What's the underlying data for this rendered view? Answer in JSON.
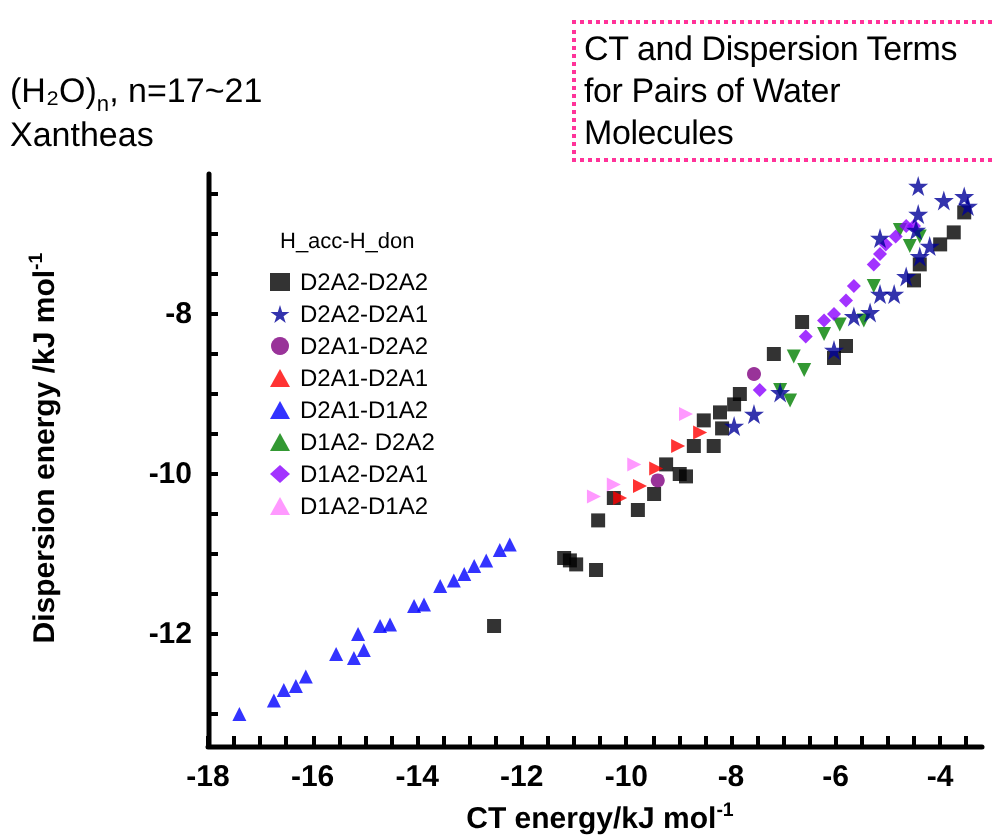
{
  "chart_data": {
    "type": "scatter",
    "title": "CT and Dispersion Terms for Pairs of Water Molecules",
    "subtitle": "(H₂O)$_{n}$, n=17~21",
    "annotations": [
      "Xantheas"
    ],
    "xlabel": "CT energy/kJ mol$^{-1}$",
    "ylabel": "Dispersion energy /kJ mol$^{-1}$",
    "legend_title": "H_acc-H_don",
    "legend": "top left",
    "grid": false,
    "xlim": [
      -18,
      -3.2
    ],
    "ylim": [
      -13.4,
      -6.25
    ],
    "xticks": [
      -18,
      {
        "value": -17.5,
        "label": null
      },
      -16,
      {
        "value": -16.5,
        "label": null
      },
      {
        "value": -17,
        "label": null
      },
      {
        "value": -15.5,
        "label": null
      },
      -14,
      {
        "value": -15,
        "label": null
      },
      {
        "value": -14.5,
        "label": null
      },
      {
        "value": -13.5,
        "label": null
      },
      {
        "value": -13,
        "label": null
      },
      {
        "value": -12.5,
        "label": null
      },
      -12,
      {
        "value": -11.5,
        "label": null
      },
      {
        "value": -11,
        "label": null
      },
      {
        "value": -10.5,
        "label": null
      },
      -10,
      {
        "value": -9.5,
        "label": null
      },
      {
        "value": -9,
        "label": null
      },
      {
        "value": -8.5,
        "label": null
      },
      -8,
      {
        "value": -7.5,
        "label": null
      },
      {
        "value": -7,
        "label": null
      },
      {
        "value": -6.5,
        "label": null
      },
      -6,
      {
        "value": -5.5,
        "label": null
      },
      {
        "value": -5,
        "label": null
      },
      {
        "value": -4.5,
        "label": null
      },
      -4,
      {
        "value": -3.5,
        "label": null
      }
    ],
    "yticks": [
      {
        "value": -13,
        "label": null
      },
      {
        "value": -12.5,
        "label": null
      },
      -12,
      {
        "value": -11.5,
        "label": null
      },
      {
        "value": -11,
        "label": null
      },
      {
        "value": -10.5,
        "label": null
      },
      -10,
      {
        "value": -9.5,
        "label": null
      },
      {
        "value": -9,
        "label": null
      },
      {
        "value": -8.5,
        "label": null
      },
      -8,
      {
        "value": -7.5,
        "label": null
      },
      {
        "value": -7,
        "label": null
      },
      {
        "value": -6.5,
        "label": null
      }
    ],
    "series": [
      {
        "name": "D2A2-D2A2",
        "color": "#000000",
        "marker": "square",
        "x": [
          -12.53,
          -11.19,
          -11.08,
          -10.96,
          -10.58,
          -10.54,
          -10.24,
          -9.78,
          -9.47,
          -9.24,
          -8.98,
          -8.86,
          -8.71,
          -8.33,
          -8.17,
          -8.52,
          -8.21,
          -7.94,
          -7.83,
          -7.18,
          -6.64,
          -6.03,
          -5.8,
          -4.5,
          -4.39,
          -4.0,
          -3.74,
          -3.54
        ],
        "values": [
          -11.9,
          -11.05,
          -11.08,
          -11.13,
          -11.2,
          -10.58,
          -10.3,
          -10.45,
          -10.25,
          -9.88,
          -10.0,
          -10.03,
          -9.65,
          -9.65,
          -9.43,
          -9.33,
          -9.23,
          -9.13,
          -9.0,
          -8.5,
          -8.1,
          -8.55,
          -8.4,
          -7.58,
          -7.38,
          -7.13,
          -6.98,
          -6.73
        ]
      },
      {
        "name": "D2A2-D2A1",
        "color": "#000099",
        "marker": "star",
        "x": [
          -7.94,
          -7.56,
          -7.06,
          -6.03,
          -5.65,
          -5.34,
          -5.15,
          -4.88,
          -4.65,
          -4.39,
          -4.2,
          -5.15,
          -4.46,
          -4.42,
          -4.42,
          -3.93,
          -3.54,
          -3.47
        ],
        "values": [
          -9.4,
          -9.25,
          -8.98,
          -8.45,
          -8.03,
          -7.98,
          -7.75,
          -7.75,
          -7.53,
          -7.28,
          -7.15,
          -7.05,
          -6.95,
          -6.75,
          -6.4,
          -6.58,
          -6.53,
          -6.65
        ]
      },
      {
        "name": "D2A1-D2A2",
        "color": "#800080",
        "marker": "circle",
        "x": [
          -9.4,
          -7.56
        ],
        "values": [
          -10.08,
          -8.75
        ]
      },
      {
        "name": "D2A1-D2A1",
        "color": "#ff0000",
        "marker": "triangle-right",
        "x": [
          -10.12,
          -9.74,
          -9.43,
          -9.01,
          -8.59
        ],
        "values": [
          -10.3,
          -10.15,
          -9.93,
          -9.65,
          -9.48
        ]
      },
      {
        "name": "D2A1-D1A2",
        "color": "#0000ff",
        "marker": "triangle",
        "x": [
          -17.4,
          -16.74,
          -16.55,
          -16.32,
          -16.13,
          -15.55,
          -15.21,
          -15.02,
          -15.13,
          -14.71,
          -14.52,
          -14.06,
          -13.87,
          -13.56,
          -13.3,
          -13.1,
          -12.91,
          -12.68,
          -12.42,
          -12.23
        ],
        "values": [
          -13.0,
          -12.83,
          -12.7,
          -12.65,
          -12.53,
          -12.25,
          -12.3,
          -12.2,
          -12.0,
          -11.9,
          -11.88,
          -11.65,
          -11.63,
          -11.4,
          -11.33,
          -11.25,
          -11.15,
          -11.08,
          -10.95,
          -10.88
        ]
      },
      {
        "name": "D1A2- D2A2",
        "color": "#008000",
        "marker": "triangle-down",
        "x": [
          -6.8,
          -6.6,
          -6.87,
          -7.06,
          -6.22,
          -5.92,
          -5.46,
          -5.27,
          -4.77,
          -4.58,
          -4.39
        ],
        "values": [
          -8.53,
          -8.7,
          -9.08,
          -8.95,
          -8.25,
          -8.13,
          -8.08,
          -7.65,
          -6.95,
          -7.15,
          -7.03
        ]
      },
      {
        "name": "D1A2-D2A1",
        "color": "#8b00ff",
        "marker": "diamond",
        "x": [
          -7.45,
          -6.57,
          -6.22,
          -6.03,
          -5.8,
          -5.65,
          -5.27,
          -5.15,
          -5.04,
          -4.85,
          -4.65,
          -4.5
        ],
        "values": [
          -8.95,
          -8.28,
          -8.08,
          -8.0,
          -7.83,
          -7.65,
          -7.38,
          -7.25,
          -7.13,
          -7.03,
          -6.9,
          -6.9
        ]
      },
      {
        "name": "D1A2-D1A2",
        "color": "#ff80ff",
        "marker": "triangle-right",
        "x": [
          -10.62,
          -10.24,
          -9.85,
          -8.86
        ],
        "values": [
          -10.28,
          -10.13,
          -9.88,
          -9.25
        ]
      }
    ]
  }
}
